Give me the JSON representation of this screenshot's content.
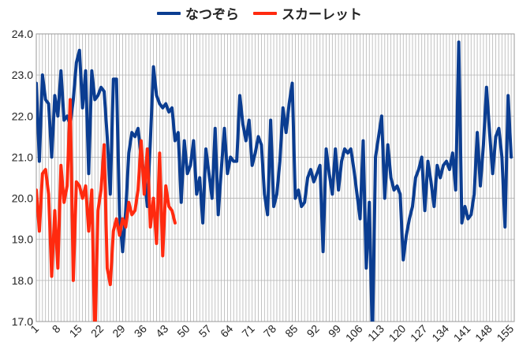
{
  "chart_data": {
    "type": "line",
    "title": "",
    "xlabel": "",
    "ylabel": "",
    "ylim": [
      17.0,
      24.0
    ],
    "y_ticks": [
      "17.0",
      "18.0",
      "19.0",
      "20.0",
      "21.0",
      "22.0",
      "23.0",
      "24.0"
    ],
    "x_range": [
      1,
      156
    ],
    "x_tick_labels": [
      "1",
      "8",
      "15",
      "22",
      "29",
      "36",
      "43",
      "50",
      "57",
      "64",
      "71",
      "78",
      "85",
      "92",
      "99",
      "106",
      "113",
      "120",
      "127",
      "134",
      "141",
      "148",
      "155"
    ],
    "grid": "vertical lines at every episode, horizontal lines at each tick",
    "legend_placement": "top-center",
    "series": [
      {
        "name": "なつぞら",
        "color": "#0b3d91",
        "values": [
          22.8,
          20.9,
          23.0,
          22.4,
          22.3,
          21.0,
          22.5,
          22.0,
          23.1,
          21.9,
          22.0,
          21.8,
          22.4,
          23.3,
          23.6,
          22.2,
          23.1,
          20.6,
          23.1,
          22.4,
          22.5,
          22.7,
          22.6,
          21.5,
          20.1,
          22.9,
          22.9,
          19.6,
          18.7,
          19.7,
          21.1,
          21.6,
          21.5,
          21.7,
          21.0,
          20.6,
          19.8,
          21.4,
          23.2,
          22.5,
          22.3,
          22.2,
          22.3,
          22.1,
          22.2,
          21.4,
          21.6,
          19.9,
          21.4,
          20.6,
          20.8,
          21.4,
          20.1,
          20.5,
          19.4,
          21.2,
          20.6,
          20.0,
          21.7,
          19.6,
          20.7,
          21.7,
          20.6,
          21.0,
          20.9,
          20.9,
          22.5,
          21.8,
          21.4,
          21.9,
          20.8,
          21.1,
          21.5,
          21.3,
          20.1,
          19.6,
          21.9,
          19.8,
          20.1,
          20.9,
          22.2,
          21.6,
          22.3,
          22.8,
          20.0,
          20.2,
          19.8,
          19.9,
          20.5,
          20.7,
          20.4,
          20.6,
          20.8,
          18.7,
          21.2,
          20.6,
          20.1,
          21.2,
          20.2,
          20.9,
          21.2,
          21.1,
          21.2,
          20.7,
          20.1,
          19.5,
          21.4,
          18.3,
          19.9,
          16.5,
          21.0,
          21.5,
          22.0,
          20.0,
          21.3,
          20.5,
          20.2,
          20.3,
          20.1,
          18.5,
          19.1,
          19.5,
          19.8,
          20.5,
          20.7,
          21.0,
          19.7,
          20.9,
          20.4,
          19.8,
          20.8,
          20.5,
          20.8,
          20.9,
          20.7,
          21.1,
          20.2,
          23.8,
          19.4,
          19.8,
          19.5,
          19.6,
          20.1,
          21.6,
          20.3,
          21.3,
          22.7,
          21.6,
          20.6,
          21.5,
          21.7,
          21.0,
          19.3,
          22.5,
          21.0
        ]
      },
      {
        "name": "スカーレット",
        "color": "#ff2a0f",
        "values": [
          20.2,
          19.2,
          20.6,
          20.7,
          20.1,
          18.1,
          19.7,
          18.3,
          20.8,
          19.9,
          20.3,
          22.4,
          18.0,
          20.4,
          20.3,
          20.0,
          20.3,
          19.2,
          20.2,
          16.5,
          19.7,
          20.2,
          21.3,
          18.3,
          17.9,
          19.2,
          19.5,
          19.1,
          19.5,
          19.3,
          19.9,
          19.6,
          19.7,
          20.2,
          21.4,
          20.1,
          21.2,
          19.3,
          20.0,
          18.9,
          21.1,
          18.6,
          20.3,
          19.8,
          19.7,
          19.4
        ]
      }
    ]
  }
}
